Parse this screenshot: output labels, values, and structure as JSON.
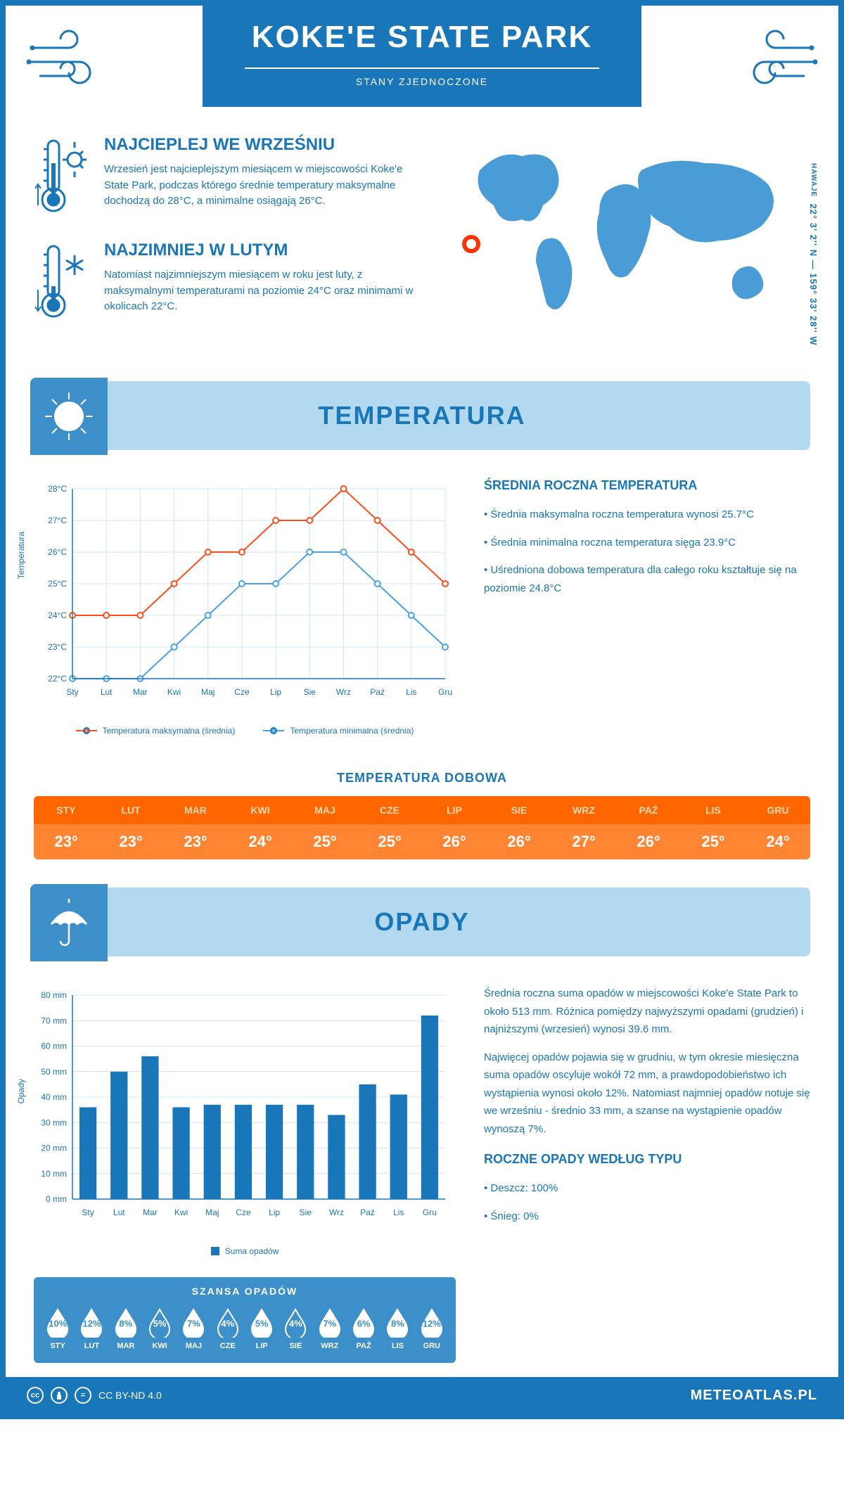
{
  "header": {
    "title": "KOKE'E STATE PARK",
    "subtitle": "STANY ZJEDNOCZONE"
  },
  "coords": {
    "text": "22° 3' 2'' N — 159° 33' 28'' W",
    "label": "HAWAJE"
  },
  "colors": {
    "primary": "#1976b8",
    "lightBlue": "#b3d9f0",
    "midBlue": "#3d8fc9",
    "mapBlue": "#4a9cd6",
    "orange": "#ff6600",
    "orangeLight": "#ff8533",
    "lineMax": "#ff4d1a",
    "lineMin": "#4aa3e0",
    "grid": "#d0e5f2",
    "markerRed": "#ff3300"
  },
  "intro": {
    "hot": {
      "title": "NAJCIEPLEJ WE WRZEŚNIU",
      "text": "Wrzesień jest najcieplejszym miesiącem w miejscowości Koke'e State Park, podczas którego średnie temperatury maksymalne dochodzą do 28°C, a minimalne osiągają 26°C."
    },
    "cold": {
      "title": "NAJZIMNIEJ W LUTYM",
      "text": "Natomiast najzimniejszym miesiącem w roku jest luty, z maksymalnymi temperaturami na poziomie 24°C oraz minimami w okolicach 22°C."
    }
  },
  "months": [
    "Sty",
    "Lut",
    "Mar",
    "Kwi",
    "Maj",
    "Cze",
    "Lip",
    "Sie",
    "Wrz",
    "Paź",
    "Lis",
    "Gru"
  ],
  "monthsUpper": [
    "STY",
    "LUT",
    "MAR",
    "KWI",
    "MAJ",
    "CZE",
    "LIP",
    "SIE",
    "WRZ",
    "PAŹ",
    "LIS",
    "GRU"
  ],
  "temp": {
    "sectionTitle": "TEMPERATURA",
    "yLabel": "Temperatura",
    "yTicks": [
      "22°C",
      "23°C",
      "24°C",
      "25°C",
      "26°C",
      "27°C",
      "28°C"
    ],
    "yMin": 22,
    "yMax": 28,
    "max": [
      24,
      24,
      24,
      25,
      26,
      26,
      27,
      27,
      28,
      27,
      26,
      25
    ],
    "min": [
      22,
      22,
      22,
      23,
      24,
      25,
      25,
      26,
      26,
      25,
      24,
      23
    ],
    "legend": {
      "max": "Temperatura maksymalna (średnia)",
      "min": "Temperatura minimalna (średnia)"
    },
    "info": {
      "title": "ŚREDNIA ROCZNA TEMPERATURA",
      "bullets": [
        "• Średnia maksymalna roczna temperatura wynosi 25.7°C",
        "• Średnia minimalna roczna temperatura sięga 23.9°C",
        "• Uśredniona dobowa temperatura dla całego roku kształtuje się na poziomie 24.8°C"
      ]
    },
    "daily": {
      "title": "TEMPERATURA DOBOWA",
      "values": [
        "23°",
        "23°",
        "23°",
        "24°",
        "25°",
        "25°",
        "26°",
        "26°",
        "27°",
        "26°",
        "25°",
        "24°"
      ]
    }
  },
  "precip": {
    "sectionTitle": "OPADY",
    "yLabel": "Opady",
    "yTicks": [
      0,
      10,
      20,
      30,
      40,
      50,
      60,
      70,
      80
    ],
    "yMax": 80,
    "values": [
      36,
      50,
      56,
      36,
      37,
      37,
      37,
      37,
      33,
      45,
      41,
      72
    ],
    "barLegend": "Suma opadów",
    "text1": "Średnia roczna suma opadów w miejscowości Koke'e State Park to około 513 mm. Różnica pomiędzy najwyższymi opadami (grudzień) i najniższymi (wrzesień) wynosi 39.6 mm.",
    "text2": "Najwięcej opadów pojawia się w grudniu, w tym okresie miesięczna suma opadów oscyluje wokół 72 mm, a prawdopodobieństwo ich wystąpienia wynosi około 12%. Natomiast najmniej opadów notuje się we wrześniu - średnio 33 mm, a szanse na wystąpienie opadów wynoszą 7%.",
    "chance": {
      "title": "SZANSA OPADÓW",
      "values": [
        10,
        12,
        8,
        5,
        7,
        4,
        5,
        4,
        7,
        6,
        8,
        12
      ],
      "filled": [
        true,
        true,
        true,
        false,
        true,
        false,
        true,
        false,
        true,
        true,
        true,
        true
      ]
    },
    "byType": {
      "title": "ROCZNE OPADY WEDŁUG TYPU",
      "bullets": [
        "• Deszcz: 100%",
        "• Śnieg: 0%"
      ]
    }
  },
  "footer": {
    "license": "CC BY-ND 4.0",
    "brand": "METEOATLAS.PL"
  }
}
